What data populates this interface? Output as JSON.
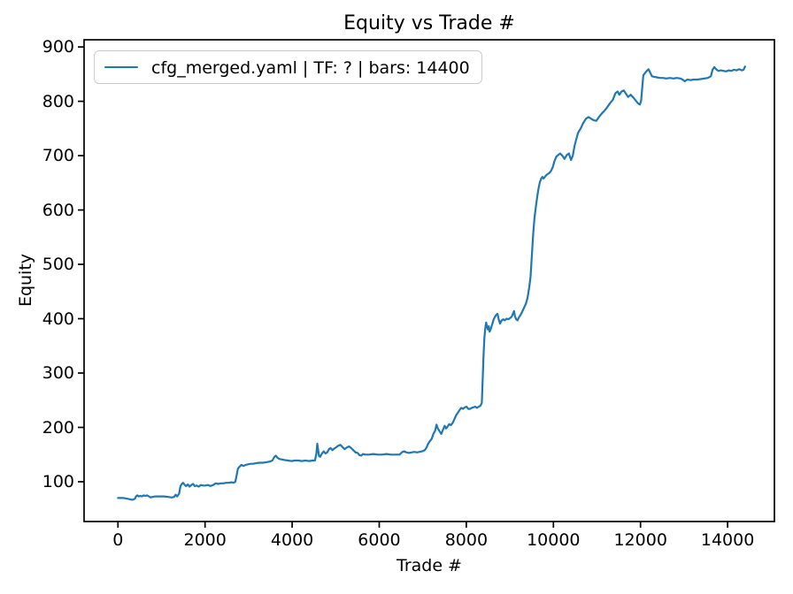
{
  "figure": {
    "title": "Equity vs Trade #",
    "xlabel": "Trade #",
    "ylabel": "Equity",
    "background_color": "#ffffff",
    "spine_color": "#000000",
    "legend": {
      "label": "cfg_merged.yaml | TF: ? | bars: 14400",
      "border_color": "#cccccc",
      "position": "upper left"
    }
  },
  "chart_data": {
    "type": "line",
    "title": "Equity vs Trade #",
    "xlabel": "Trade #",
    "ylabel": "Equity",
    "grid": false,
    "legend_position": "upper left",
    "xlim": [
      -778,
      15075
    ],
    "ylim": [
      26.8,
      913.2
    ],
    "x_ticks": [
      0,
      2000,
      4000,
      6000,
      8000,
      10000,
      12000,
      14000
    ],
    "y_ticks": [
      100,
      200,
      300,
      400,
      500,
      600,
      700,
      800,
      900
    ],
    "series": [
      {
        "name": "cfg_merged.yaml | TF: ? | bars: 14400",
        "color": "#1f77b4",
        "points": [
          [
            0,
            70
          ],
          [
            60,
            70
          ],
          [
            130,
            70
          ],
          [
            200,
            69
          ],
          [
            260,
            68
          ],
          [
            310,
            67
          ],
          [
            350,
            67
          ],
          [
            390,
            69
          ],
          [
            415,
            73
          ],
          [
            445,
            75
          ],
          [
            475,
            73
          ],
          [
            510,
            74
          ],
          [
            550,
            73
          ],
          [
            590,
            75
          ],
          [
            630,
            74
          ],
          [
            670,
            75
          ],
          [
            710,
            73
          ],
          [
            750,
            71
          ],
          [
            790,
            72
          ],
          [
            860,
            73
          ],
          [
            960,
            73
          ],
          [
            1060,
            73
          ],
          [
            1160,
            72
          ],
          [
            1230,
            71
          ],
          [
            1290,
            72
          ],
          [
            1325,
            76
          ],
          [
            1360,
            73
          ],
          [
            1405,
            78
          ],
          [
            1435,
            92
          ],
          [
            1465,
            96
          ],
          [
            1495,
            98
          ],
          [
            1525,
            95
          ],
          [
            1565,
            92
          ],
          [
            1605,
            95
          ],
          [
            1645,
            91
          ],
          [
            1685,
            94
          ],
          [
            1725,
            96
          ],
          [
            1765,
            92
          ],
          [
            1805,
            93
          ],
          [
            1855,
            91
          ],
          [
            1905,
            94
          ],
          [
            1955,
            93
          ],
          [
            2005,
            93
          ],
          [
            2065,
            94
          ],
          [
            2125,
            92
          ],
          [
            2185,
            94
          ],
          [
            2245,
            97
          ],
          [
            2305,
            96
          ],
          [
            2365,
            97
          ],
          [
            2425,
            97
          ],
          [
            2485,
            98
          ],
          [
            2545,
            98
          ],
          [
            2605,
            99
          ],
          [
            2655,
            98
          ],
          [
            2695,
            100
          ],
          [
            2725,
            112
          ],
          [
            2755,
            124
          ],
          [
            2795,
            128
          ],
          [
            2835,
            131
          ],
          [
            2885,
            129
          ],
          [
            2935,
            131
          ],
          [
            2985,
            132
          ],
          [
            3045,
            133
          ],
          [
            3105,
            133
          ],
          [
            3165,
            134
          ],
          [
            3245,
            135
          ],
          [
            3325,
            135
          ],
          [
            3405,
            136
          ],
          [
            3485,
            137
          ],
          [
            3545,
            139
          ],
          [
            3595,
            146
          ],
          [
            3625,
            148
          ],
          [
            3665,
            144
          ],
          [
            3705,
            142
          ],
          [
            3765,
            141
          ],
          [
            3825,
            140
          ],
          [
            3905,
            139
          ],
          [
            3985,
            138
          ],
          [
            4065,
            139
          ],
          [
            4145,
            139
          ],
          [
            4225,
            138
          ],
          [
            4305,
            139
          ],
          [
            4385,
            138
          ],
          [
            4465,
            139
          ],
          [
            4525,
            139
          ],
          [
            4558,
            152
          ],
          [
            4578,
            170
          ],
          [
            4598,
            158
          ],
          [
            4618,
            147
          ],
          [
            4645,
            146
          ],
          [
            4685,
            152
          ],
          [
            4725,
            156
          ],
          [
            4765,
            152
          ],
          [
            4805,
            154
          ],
          [
            4845,
            160
          ],
          [
            4885,
            162
          ],
          [
            4925,
            158
          ],
          [
            4965,
            161
          ],
          [
            5005,
            163
          ],
          [
            5055,
            166
          ],
          [
            5105,
            168
          ],
          [
            5155,
            164
          ],
          [
            5205,
            160
          ],
          [
            5255,
            163
          ],
          [
            5305,
            165
          ],
          [
            5355,
            162
          ],
          [
            5405,
            158
          ],
          [
            5455,
            154
          ],
          [
            5505,
            153
          ],
          [
            5545,
            149
          ],
          [
            5585,
            148
          ],
          [
            5625,
            151
          ],
          [
            5685,
            150
          ],
          [
            5765,
            150
          ],
          [
            5865,
            151
          ],
          [
            5965,
            150
          ],
          [
            6065,
            150
          ],
          [
            6165,
            151
          ],
          [
            6265,
            150
          ],
          [
            6365,
            150
          ],
          [
            6465,
            150
          ],
          [
            6535,
            155
          ],
          [
            6575,
            156
          ],
          [
            6625,
            154
          ],
          [
            6685,
            153
          ],
          [
            6745,
            154
          ],
          [
            6805,
            155
          ],
          [
            6865,
            154
          ],
          [
            6925,
            155
          ],
          [
            6985,
            156
          ],
          [
            7045,
            158
          ],
          [
            7085,
            163
          ],
          [
            7125,
            170
          ],
          [
            7165,
            175
          ],
          [
            7205,
            179
          ],
          [
            7245,
            188
          ],
          [
            7285,
            194
          ],
          [
            7315,
            205
          ],
          [
            7345,
            198
          ],
          [
            7385,
            193
          ],
          [
            7425,
            188
          ],
          [
            7465,
            196
          ],
          [
            7505,
            203
          ],
          [
            7535,
            198
          ],
          [
            7565,
            201
          ],
          [
            7605,
            206
          ],
          [
            7645,
            204
          ],
          [
            7685,
            208
          ],
          [
            7725,
            215
          ],
          [
            7765,
            222
          ],
          [
            7805,
            227
          ],
          [
            7845,
            232
          ],
          [
            7885,
            236
          ],
          [
            7925,
            234
          ],
          [
            7965,
            237
          ],
          [
            8005,
            238
          ],
          [
            8045,
            234
          ],
          [
            8085,
            234
          ],
          [
            8125,
            236
          ],
          [
            8165,
            237
          ],
          [
            8205,
            238
          ],
          [
            8245,
            236
          ],
          [
            8285,
            238
          ],
          [
            8325,
            240
          ],
          [
            8355,
            245
          ],
          [
            8375,
            285
          ],
          [
            8395,
            330
          ],
          [
            8415,
            365
          ],
          [
            8435,
            382
          ],
          [
            8455,
            393
          ],
          [
            8475,
            385
          ],
          [
            8495,
            380
          ],
          [
            8515,
            386
          ],
          [
            8535,
            376
          ],
          [
            8565,
            382
          ],
          [
            8595,
            390
          ],
          [
            8625,
            398
          ],
          [
            8655,
            403
          ],
          [
            8685,
            407
          ],
          [
            8715,
            409
          ],
          [
            8745,
            398
          ],
          [
            8775,
            391
          ],
          [
            8805,
            396
          ],
          [
            8845,
            399
          ],
          [
            8885,
            397
          ],
          [
            8925,
            400
          ],
          [
            8965,
            399
          ],
          [
            9005,
            401
          ],
          [
            9045,
            404
          ],
          [
            9075,
            410
          ],
          [
            9095,
            414
          ],
          [
            9115,
            405
          ],
          [
            9145,
            399
          ],
          [
            9175,
            397
          ],
          [
            9205,
            402
          ],
          [
            9245,
            407
          ],
          [
            9285,
            413
          ],
          [
            9325,
            420
          ],
          [
            9365,
            427
          ],
          [
            9405,
            438
          ],
          [
            9445,
            458
          ],
          [
            9475,
            478
          ],
          [
            9505,
            515
          ],
          [
            9535,
            555
          ],
          [
            9565,
            585
          ],
          [
            9595,
            605
          ],
          [
            9625,
            622
          ],
          [
            9655,
            638
          ],
          [
            9685,
            650
          ],
          [
            9715,
            657
          ],
          [
            9745,
            661
          ],
          [
            9775,
            658
          ],
          [
            9805,
            661
          ],
          [
            9835,
            664
          ],
          [
            9865,
            666
          ],
          [
            9905,
            668
          ],
          [
            9945,
            672
          ],
          [
            9985,
            679
          ],
          [
            10025,
            690
          ],
          [
            10065,
            698
          ],
          [
            10105,
            701
          ],
          [
            10155,
            704
          ],
          [
            10205,
            700
          ],
          [
            10255,
            694
          ],
          [
            10305,
            701
          ],
          [
            10355,
            704
          ],
          [
            10405,
            692
          ],
          [
            10445,
            700
          ],
          [
            10485,
            718
          ],
          [
            10525,
            730
          ],
          [
            10565,
            742
          ],
          [
            10625,
            750
          ],
          [
            10685,
            760
          ],
          [
            10745,
            768
          ],
          [
            10805,
            771
          ],
          [
            10865,
            768
          ],
          [
            10925,
            765
          ],
          [
            10985,
            764
          ],
          [
            11045,
            771
          ],
          [
            11105,
            777
          ],
          [
            11165,
            782
          ],
          [
            11225,
            788
          ],
          [
            11295,
            796
          ],
          [
            11365,
            803
          ],
          [
            11425,
            815
          ],
          [
            11475,
            818
          ],
          [
            11515,
            812
          ],
          [
            11565,
            818
          ],
          [
            11615,
            820
          ],
          [
            11665,
            814
          ],
          [
            11715,
            808
          ],
          [
            11775,
            812
          ],
          [
            11835,
            807
          ],
          [
            11895,
            801
          ],
          [
            11945,
            796
          ],
          [
            11985,
            794
          ],
          [
            12015,
            801
          ],
          [
            12045,
            830
          ],
          [
            12065,
            848
          ],
          [
            12105,
            852
          ],
          [
            12145,
            856
          ],
          [
            12185,
            859
          ],
          [
            12225,
            852
          ],
          [
            12265,
            846
          ],
          [
            12315,
            845
          ],
          [
            12375,
            844
          ],
          [
            12445,
            843
          ],
          [
            12515,
            843
          ],
          [
            12595,
            842
          ],
          [
            12675,
            843
          ],
          [
            12755,
            842
          ],
          [
            12835,
            843
          ],
          [
            12915,
            842
          ],
          [
            12965,
            840
          ],
          [
            13015,
            837
          ],
          [
            13075,
            840
          ],
          [
            13145,
            839
          ],
          [
            13225,
            840
          ],
          [
            13305,
            840
          ],
          [
            13385,
            841
          ],
          [
            13465,
            842
          ],
          [
            13545,
            843
          ],
          [
            13615,
            846
          ],
          [
            13655,
            858
          ],
          [
            13695,
            863
          ],
          [
            13735,
            859
          ],
          [
            13785,
            856
          ],
          [
            13845,
            857
          ],
          [
            13905,
            856
          ],
          [
            13965,
            855
          ],
          [
            14025,
            857
          ],
          [
            14085,
            856
          ],
          [
            14145,
            858
          ],
          [
            14205,
            857
          ],
          [
            14265,
            859
          ],
          [
            14325,
            857
          ],
          [
            14365,
            858
          ],
          [
            14400,
            864
          ]
        ]
      }
    ]
  }
}
